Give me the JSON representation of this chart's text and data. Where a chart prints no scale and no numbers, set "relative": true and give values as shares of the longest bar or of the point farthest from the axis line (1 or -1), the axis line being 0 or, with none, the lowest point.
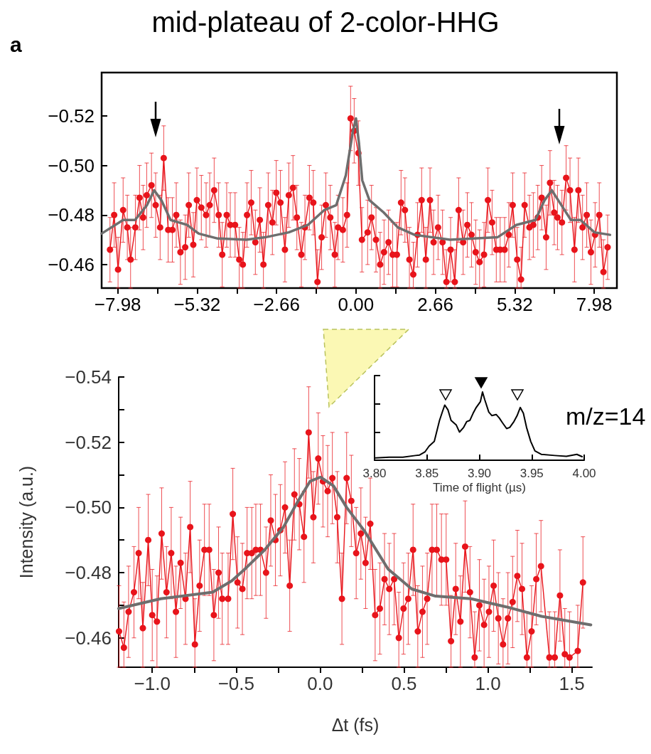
{
  "chart_data": [
    {
      "type": "line",
      "title": "mid-plateau of 2-color-HHG",
      "annotations": [
        "a"
      ],
      "xlim": [
        -8.52,
        8.74
      ],
      "xticks": [
        {
          "value": -7.98,
          "label": "−7.98"
        },
        {
          "value": -6.65,
          "label": null
        },
        {
          "value": -5.32,
          "label": "−5.32"
        },
        {
          "value": -3.99,
          "label": null
        },
        {
          "value": -2.66,
          "label": "−2.66"
        },
        {
          "value": -1.33,
          "label": null
        },
        {
          "value": 0,
          "label": "0.00"
        },
        {
          "value": 1.33,
          "label": null
        },
        {
          "value": 2.66,
          "label": "2.66"
        },
        {
          "value": 3.99,
          "label": null
        },
        {
          "value": 5.32,
          "label": "5.32"
        },
        {
          "value": 6.65,
          "label": null
        },
        {
          "value": 7.98,
          "label": "7.98"
        }
      ],
      "ylim": [
        -0.4505,
        -0.5375
      ],
      "yticks": [
        {
          "value": -0.52,
          "label": "−0.52"
        },
        {
          "value": -0.5,
          "label": "−0.50"
        },
        {
          "value": -0.48,
          "label": "−0.48"
        },
        {
          "value": -0.46,
          "label": "−0.46"
        }
      ],
      "series": [
        {
          "color": "#e8141b",
          "marker": "circle",
          "x": [
            -8.24,
            -8.1,
            -7.97,
            -7.8,
            -7.66,
            -7.55,
            -7.39,
            -7.25,
            -7.13,
            -7.01,
            -6.85,
            -6.71,
            -6.56,
            -6.44,
            -6.29,
            -6.15,
            -6.02,
            -5.88,
            -5.72,
            -5.6,
            -5.45,
            -5.33,
            -5.18,
            -5.02,
            -4.9,
            -4.75,
            -4.6,
            -4.48,
            -4.33,
            -4.21,
            -4.05,
            -3.91,
            -3.79,
            -3.65,
            -3.51,
            -3.37,
            -3.22,
            -3.1,
            -2.94,
            -2.8,
            -2.67,
            -2.53,
            -2.38,
            -2.25,
            -2.11,
            -1.98,
            -1.83,
            -1.71,
            -1.56,
            -1.43,
            -1.29,
            -1.15,
            -1.01,
            -0.86,
            -0.71,
            -0.6,
            -0.44,
            -0.3,
            -0.18,
            -0.06,
            0.08,
            0.2,
            0.39,
            0.52,
            0.67,
            0.81,
            0.94,
            1.09,
            1.23,
            1.37,
            1.51,
            1.64,
            1.79,
            1.92,
            2.06,
            2.2,
            2.34,
            2.48,
            2.6,
            2.75,
            2.9,
            3.03,
            3.17,
            3.31,
            3.44,
            3.59,
            3.73,
            3.87,
            4.01,
            4.14,
            4.29,
            4.42,
            4.56,
            4.7,
            4.83,
            4.98,
            5.12,
            5.25,
            5.4,
            5.53,
            5.65,
            5.81,
            5.94,
            6.09,
            6.22,
            6.37,
            6.5,
            6.64,
            6.75,
            6.9,
            7.04,
            7.17,
            7.32,
            7.45,
            7.59,
            7.73,
            7.87,
            8.01,
            8.15,
            8.29,
            8.43
          ],
          "values": [
            -0.466,
            -0.48,
            -0.458,
            -0.482,
            -0.475,
            -0.462,
            -0.475,
            -0.487,
            -0.479,
            -0.488,
            -0.492,
            -0.484,
            -0.475,
            -0.503,
            -0.474,
            -0.474,
            -0.48,
            -0.465,
            -0.467,
            -0.484,
            -0.468,
            -0.486,
            -0.483,
            -0.48,
            -0.484,
            -0.49,
            -0.48,
            -0.464,
            -0.48,
            -0.476,
            -0.476,
            -0.462,
            -0.46,
            -0.48,
            -0.485,
            -0.469,
            -0.478,
            -0.46,
            -0.484,
            -0.477,
            -0.489,
            -0.485,
            -0.466,
            -0.488,
            -0.491,
            -0.479,
            -0.464,
            -0.475,
            -0.487,
            -0.485,
            -0.453,
            -0.471,
            -0.484,
            -0.479,
            -0.464,
            -0.475,
            -0.474,
            -0.48,
            -0.519,
            -0.514,
            -0.505,
            -0.47,
            -0.473,
            -0.479,
            -0.47,
            -0.46,
            -0.465,
            -0.469,
            -0.464,
            -0.464,
            -0.485,
            -0.482,
            -0.462,
            -0.456,
            -0.472,
            -0.486,
            -0.462,
            -0.486,
            -0.469,
            -0.475,
            -0.469,
            -0.453,
            -0.466,
            -0.453,
            -0.482,
            -0.469,
            -0.476,
            -0.472,
            -0.465,
            -0.461,
            -0.464,
            -0.486,
            -0.477,
            -0.466,
            -0.466,
            -0.466,
            -0.472,
            -0.484,
            -0.462,
            -0.454,
            -0.484,
            -0.475,
            -0.476,
            -0.479,
            -0.487,
            -0.471,
            -0.493,
            -0.481,
            -0.479,
            -0.477,
            -0.495,
            -0.49,
            -0.466,
            -0.49,
            -0.475,
            -0.48,
            -0.465,
            -0.472,
            -0.48,
            -0.457,
            -0.467
          ],
          "errors": [
            0.013,
            0.013,
            [
              -0.471,
              -0.4505
            ],
            0.013,
            0.013,
            [
              -0.475,
              -0.4505
            ],
            0.013,
            0.013,
            0.013,
            0.013,
            0.013,
            0.013,
            0.013,
            0.013,
            0.013,
            0.013,
            0.013,
            0.013,
            0.013,
            0.013,
            0.013,
            0.013,
            0.013,
            0.013,
            0.013,
            0.013,
            0.013,
            0.013,
            0.013,
            0.013,
            0.013,
            [
              -0.475,
              -0.4505
            ],
            [
              -0.473,
              -0.4505
            ],
            0.013,
            0.013,
            0.013,
            0.013,
            [
              -0.473,
              -0.4505
            ],
            0.013,
            0.013,
            0.013,
            0.013,
            0.013,
            0.013,
            0.013,
            0.013,
            0.013,
            0.013,
            0.013,
            0.013,
            [
              -0.466,
              -0.4505
            ],
            0.013,
            0.013,
            0.013,
            0.013,
            0.013,
            0.013,
            0.013,
            0.013,
            0.013,
            0.013,
            0.013,
            0.013,
            0.013,
            0.013,
            [
              -0.473,
              -0.4505
            ],
            0.013,
            0.013,
            0.013,
            0.013,
            0.013,
            0.013,
            [
              -0.475,
              -0.4505
            ],
            [
              -0.469,
              -0.4505
            ],
            0.013,
            0.013,
            [
              -0.475,
              -0.4505
            ],
            0.013,
            0.013,
            0.013,
            0.013,
            [
              -0.466,
              -0.4505
            ],
            0.013,
            [
              -0.466,
              -0.4505
            ],
            0.013,
            0.013,
            0.013,
            0.013,
            0.013,
            [
              -0.474,
              -0.4505
            ],
            0.013,
            0.013,
            0.013,
            0.013,
            0.013,
            0.013,
            0.013,
            0.013,
            [
              -0.475,
              -0.4505
            ],
            [
              -0.467,
              -0.4505
            ],
            0.013,
            0.013,
            0.013,
            0.013,
            0.013,
            0.013,
            0.013,
            0.013,
            0.013,
            0.013,
            0.013,
            0.013,
            0.013,
            0.013,
            0.013,
            0.013,
            0.013,
            0.013,
            0.013,
            [
              -0.47,
              -0.4505
            ],
            0.013
          ]
        },
        {
          "color": "#6e6e6e",
          "marker": "none",
          "x": [
            -8.52,
            -7.8,
            -7.4,
            -7.0,
            -6.76,
            -6.52,
            -6.21,
            -5.66,
            -5.27,
            -4.63,
            -3.67,
            -3.04,
            -2.25,
            -1.61,
            -1.06,
            -0.66,
            -0.34,
            -0.1,
            0.0,
            0.1,
            0.21,
            0.45,
            0.93,
            1.4,
            1.96,
            3.15,
            4.74,
            5.37,
            6.01,
            6.32,
            6.56,
            6.88,
            7.2,
            7.52,
            7.99,
            8.51
          ],
          "values": [
            -0.4725,
            -0.478,
            -0.478,
            -0.484,
            -0.49,
            -0.486,
            -0.478,
            -0.476,
            -0.4725,
            -0.4705,
            -0.47,
            -0.471,
            -0.473,
            -0.476,
            -0.482,
            -0.484,
            -0.496,
            -0.514,
            -0.519,
            -0.509,
            -0.494,
            -0.486,
            -0.481,
            -0.475,
            -0.472,
            -0.47,
            -0.471,
            -0.476,
            -0.478,
            -0.486,
            -0.49,
            -0.484,
            -0.478,
            -0.478,
            -0.473,
            -0.472
          ]
        }
      ]
    },
    {
      "type": "line",
      "xlabel": "Δt (fs)",
      "ylabel": "Intensity (a.u.)",
      "xlim": [
        -1.2,
        1.62
      ],
      "xticks": [
        {
          "value": -1.0,
          "label": "−1.0"
        },
        {
          "value": -0.75,
          "label": null
        },
        {
          "value": -0.5,
          "label": "−0.5"
        },
        {
          "value": -0.25,
          "label": null
        },
        {
          "value": 0,
          "label": "0.0"
        },
        {
          "value": 0.25,
          "label": null
        },
        {
          "value": 0.5,
          "label": "0.5"
        },
        {
          "value": 0.75,
          "label": null
        },
        {
          "value": 1.0,
          "label": "1.0"
        },
        {
          "value": 1.25,
          "label": null
        },
        {
          "value": 1.5,
          "label": "1.5"
        }
      ],
      "ylim": [
        -0.451,
        -0.54
      ],
      "yticks": [
        {
          "value": -0.54,
          "label": "−0.54"
        },
        {
          "value": -0.53,
          "label": null
        },
        {
          "value": -0.52,
          "label": "−0.52"
        },
        {
          "value": -0.51,
          "label": null
        },
        {
          "value": -0.5,
          "label": "−0.50"
        },
        {
          "value": -0.49,
          "label": null
        },
        {
          "value": -0.48,
          "label": "−0.48"
        },
        {
          "value": -0.47,
          "label": null
        },
        {
          "value": -0.46,
          "label": "−0.46"
        }
      ],
      "series": [
        {
          "color": "#e8141b",
          "marker": "circle",
          "x": [
            -1.198,
            -1.169,
            -1.141,
            -1.109,
            -1.081,
            -1.056,
            -1.024,
            -1.0,
            -0.972,
            -0.944,
            -0.915,
            -0.887,
            -0.859,
            -0.831,
            -0.802,
            -0.774,
            -0.746,
            -0.718,
            -0.689,
            -0.661,
            -0.633,
            -0.605,
            -0.583,
            -0.548,
            -0.52,
            -0.492,
            -0.463,
            -0.435,
            -0.407,
            -0.383,
            -0.355,
            -0.322,
            -0.294,
            -0.266,
            -0.237,
            -0.209,
            -0.181,
            -0.153,
            -0.124,
            -0.096,
            -0.068,
            -0.04,
            -0.011,
            0.017,
            0.045,
            0.073,
            0.102,
            0.13,
            0.158,
            0.186,
            0.215,
            0.243,
            0.271,
            0.299,
            0.328,
            0.356,
            0.384,
            0.412,
            0.441,
            0.469,
            0.497,
            0.525,
            0.554,
            0.582,
            0.61,
            0.638,
            0.667,
            0.695,
            0.723,
            0.751,
            0.78,
            0.808,
            0.836,
            0.864,
            0.893,
            0.921,
            0.949,
            0.977,
            1.006,
            1.034,
            1.062,
            1.09,
            1.119,
            1.147,
            1.175,
            1.203,
            1.232,
            1.26,
            1.288,
            1.316,
            1.366,
            1.398,
            1.429,
            1.458,
            1.486,
            1.535,
            1.566
          ],
          "values": [
            -0.462,
            -0.457,
            -0.468,
            -0.474,
            -0.486,
            -0.463,
            -0.49,
            -0.467,
            -0.465,
            -0.492,
            -0.474,
            -0.486,
            -0.468,
            -0.483,
            -0.472,
            -0.494,
            -0.458,
            -0.476,
            -0.487,
            -0.487,
            -0.467,
            -0.48,
            -0.472,
            -0.472,
            -0.498,
            -0.477,
            -0.475,
            -0.486,
            -0.486,
            -0.487,
            -0.487,
            -0.48,
            -0.496,
            -0.49,
            -0.493,
            -0.5,
            -0.476,
            -0.504,
            -0.501,
            -0.491,
            -0.523,
            -0.497,
            -0.515,
            -0.508,
            -0.505,
            -0.509,
            -0.497,
            -0.472,
            -0.509,
            -0.502,
            -0.486,
            -0.492,
            -0.483,
            -0.495,
            -0.467,
            -0.469,
            -0.478,
            -0.475,
            -0.478,
            -0.46,
            -0.469,
            -0.472,
            -0.487,
            -0.462,
            -0.468,
            -0.472,
            -0.487,
            -0.487,
            -0.484,
            -0.484,
            -0.459,
            -0.475,
            -0.465,
            -0.488,
            -0.474,
            -0.454,
            -0.47,
            -0.464,
            -0.468,
            -0.476,
            -0.466,
            -0.458,
            -0.466,
            -0.471,
            -0.479,
            -0.475,
            -0.454,
            -0.462,
            -0.478,
            -0.482,
            -0.454,
            -0.454,
            -0.473,
            -0.455,
            -0.454,
            -0.456,
            -0.477
          ],
          "errors": [
            [
              -0.476,
              -0.451
            ],
            [
              -0.471,
              -0.451
            ],
            0.014,
            0.014,
            0.014,
            [
              -0.477,
              -0.451
            ],
            0.014,
            0.014,
            0.014,
            0.014,
            0.014,
            0.014,
            0.014,
            0.014,
            0.014,
            0.014,
            [
              -0.472,
              -0.451
            ],
            0.014,
            0.014,
            0.014,
            0.014,
            0.014,
            0.014,
            0.014,
            0.014,
            0.014,
            0.014,
            0.014,
            0.014,
            0.014,
            0.014,
            0.014,
            0.014,
            0.014,
            0.014,
            0.014,
            0.014,
            0.014,
            0.014,
            0.014,
            0.014,
            0.014,
            0.014,
            0.014,
            0.014,
            0.014,
            0.014,
            0.014,
            0.014,
            0.014,
            0.014,
            0.014,
            0.014,
            0.014,
            0.014,
            0.014,
            0.014,
            0.014,
            0.014,
            [
              -0.474,
              -0.451
            ],
            0.014,
            0.014,
            0.014,
            [
              -0.476,
              -0.451
            ],
            0.014,
            0.014,
            0.014,
            0.014,
            0.014,
            0.014,
            [
              -0.473,
              -0.451
            ],
            0.014,
            0.014,
            0.014,
            0.014,
            [
              -0.468,
              -0.451
            ],
            0.014,
            [
              -0.478,
              -0.451
            ],
            0.014,
            0.014,
            0.014,
            [
              -0.472,
              -0.451
            ],
            0.014,
            0.014,
            0.014,
            0.014,
            [
              -0.468,
              -0.451
            ],
            [
              -0.476,
              -0.451
            ],
            0.014,
            0.014,
            [
              -0.468,
              -0.451
            ],
            [
              -0.468,
              -0.451
            ],
            0.014,
            [
              -0.469,
              -0.451
            ],
            [
              -0.468,
              -0.451
            ],
            [
              -0.47,
              -0.451
            ],
            0.014
          ]
        },
        {
          "color": "#6e6e6e",
          "marker": "none",
          "x": [
            -1.2,
            -0.95,
            -0.64,
            -0.526,
            -0.44,
            -0.33,
            -0.218,
            -0.131,
            -0.06,
            0.002,
            0.08,
            0.158,
            0.264,
            0.405,
            0.546,
            0.688,
            0.9,
            1.11,
            1.32,
            1.613
          ],
          "values": [
            -0.469,
            -0.472,
            -0.474,
            -0.4775,
            -0.4815,
            -0.487,
            -0.494,
            -0.502,
            -0.508,
            -0.5093,
            -0.5066,
            -0.5,
            -0.4928,
            -0.4811,
            -0.475,
            -0.4728,
            -0.472,
            -0.4695,
            -0.4666,
            -0.464
          ]
        }
      ]
    },
    {
      "type": "line",
      "relative": true,
      "tick_labels": "x",
      "xlabel": "Time of flight (µs)",
      "annotations": [
        "m/z=14"
      ],
      "xlim": [
        3.8,
        4.0
      ],
      "xticks": [
        {
          "value": 3.8,
          "label": "3.80"
        },
        {
          "value": 3.85,
          "label": "3.85"
        },
        {
          "value": 3.9,
          "label": "3.90"
        },
        {
          "value": 3.95,
          "label": "3.95"
        },
        {
          "value": 4.0,
          "label": "4.00"
        }
      ],
      "series": [
        {
          "color": "#000000",
          "marker": "none",
          "x": [
            3.801,
            3.814,
            3.827,
            3.839,
            3.843,
            3.848,
            3.852,
            3.857,
            3.862,
            3.865,
            3.867,
            3.87,
            3.873,
            3.878,
            3.881,
            3.885,
            3.888,
            3.891,
            3.894,
            3.897,
            3.901,
            3.903,
            3.905,
            3.909,
            3.912,
            3.916,
            3.919,
            3.922,
            3.926,
            3.929,
            3.933,
            3.936,
            3.939,
            3.942,
            3.945,
            3.949,
            3.953,
            3.959,
            3.972,
            3.983,
            3.993,
            3.998
          ],
          "values": [
            0.034,
            0.045,
            0.045,
            0.069,
            0.076,
            0.12,
            0.206,
            0.275,
            0.584,
            0.722,
            0.808,
            0.739,
            0.584,
            0.515,
            0.412,
            0.481,
            0.567,
            0.584,
            0.687,
            0.773,
            0.859,
            1,
            0.893,
            0.705,
            0.653,
            0.67,
            0.619,
            0.55,
            0.464,
            0.481,
            0.567,
            0.653,
            0.773,
            0.687,
            0.481,
            0.275,
            0.137,
            0.086,
            0.069,
            0.058,
            0.086,
            0.052
          ]
        }
      ]
    }
  ]
}
